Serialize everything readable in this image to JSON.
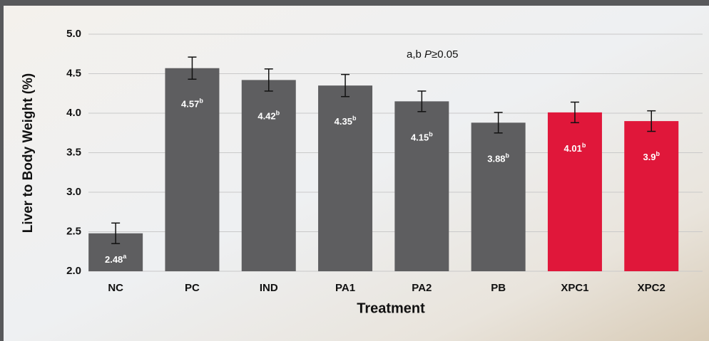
{
  "chart_data": {
    "type": "bar",
    "x_label": "Treatment",
    "y_label": "Liver to Body Weight (%)",
    "annotation": [
      "a,b",
      "P",
      "≥0.05"
    ],
    "categories": [
      "NC",
      "PC",
      "IND",
      "PA1",
      "PA2",
      "PB",
      "XPC1",
      "XPC2"
    ],
    "values": [
      2.48,
      4.57,
      4.42,
      4.35,
      4.15,
      3.88,
      4.01,
      3.9
    ],
    "superscripts": [
      "a",
      "b",
      "b",
      "b",
      "b",
      "b",
      "b",
      "b"
    ],
    "errors": [
      0.13,
      0.14,
      0.14,
      0.14,
      0.13,
      0.13,
      0.13,
      0.13
    ],
    "colors": [
      "#5e5e60",
      "#5e5e60",
      "#5e5e60",
      "#5e5e60",
      "#5e5e60",
      "#5e5e60",
      "#e0173a",
      "#e0173a"
    ],
    "ylim": [
      2.0,
      5.0
    ],
    "yticks": [
      {
        "value": 2.0,
        "label": "2.0"
      },
      {
        "value": 2.5,
        "label": "2.5"
      },
      {
        "value": 3.0,
        "label": "3.0"
      },
      {
        "value": 3.5,
        "label": "3.5"
      },
      {
        "value": 4.0,
        "label": "4.0"
      },
      {
        "value": 4.5,
        "label": "4.5"
      },
      {
        "value": 5.0,
        "label": "5.0"
      }
    ],
    "grid": true
  }
}
